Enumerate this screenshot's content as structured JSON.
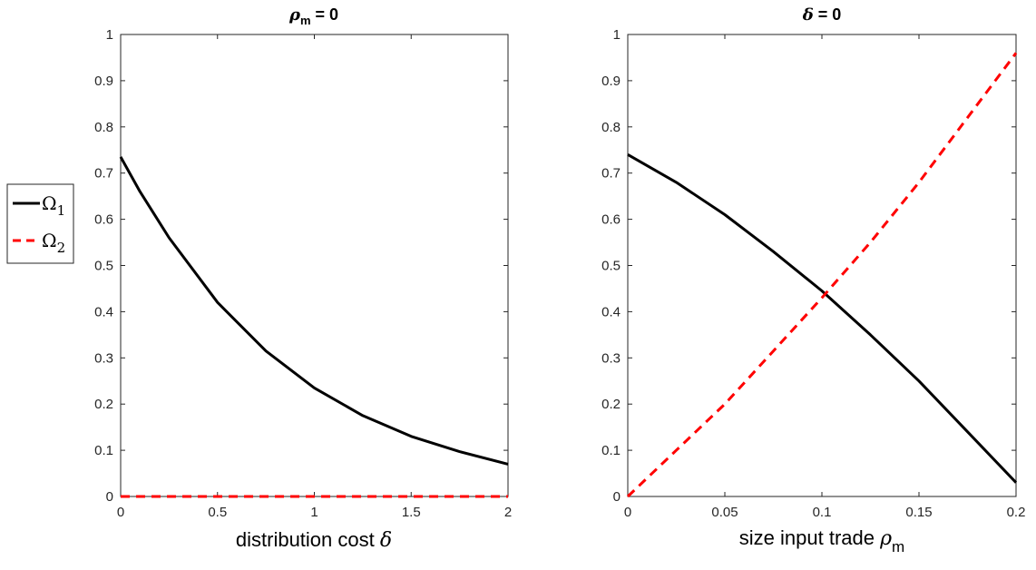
{
  "legend": {
    "entries": [
      {
        "symbol": "Ω",
        "subscript": "1",
        "color": "#000000",
        "dash": "solid"
      },
      {
        "symbol": "Ω",
        "subscript": "2",
        "color": "#ff0000",
        "dash": "dashed"
      }
    ]
  },
  "panels": [
    {
      "title": {
        "symbol": "ρ",
        "subscript": "m",
        "text": " = 0"
      },
      "xlabel": {
        "text": "distribution cost ",
        "symbol": "δ",
        "subscript": ""
      }
    },
    {
      "title": {
        "symbol": "δ",
        "subscript": "",
        "text": " = 0"
      },
      "xlabel": {
        "text": "size input trade ",
        "symbol": "ρ",
        "subscript": "m"
      }
    }
  ],
  "chart_data": [
    {
      "type": "line",
      "xlim": [
        0,
        2
      ],
      "ylim": [
        0,
        1
      ],
      "xticks": [
        "0",
        "0.5",
        "1",
        "1.5",
        "2"
      ],
      "yticks": [
        "0",
        "0.1",
        "0.2",
        "0.3",
        "0.4",
        "0.5",
        "0.6",
        "0.7",
        "0.8",
        "0.9",
        "1"
      ],
      "series": [
        {
          "name": "Ω1",
          "color": "#000000",
          "dash": "solid",
          "x": [
            0,
            0.1,
            0.25,
            0.5,
            0.75,
            1.0,
            1.25,
            1.5,
            1.75,
            2.0
          ],
          "y": [
            0.735,
            0.66,
            0.56,
            0.42,
            0.315,
            0.235,
            0.175,
            0.13,
            0.097,
            0.07
          ]
        },
        {
          "name": "Ω2",
          "color": "#ff0000",
          "dash": "dashed",
          "x": [
            0,
            2
          ],
          "y": [
            0,
            0
          ]
        }
      ]
    },
    {
      "type": "line",
      "xlim": [
        0,
        0.2
      ],
      "ylim": [
        0,
        1
      ],
      "xticks": [
        "0",
        "0.05",
        "0.1",
        "0.15",
        "0.2"
      ],
      "yticks": [
        "0",
        "0.1",
        "0.2",
        "0.3",
        "0.4",
        "0.5",
        "0.6",
        "0.7",
        "0.8",
        "0.9",
        "1"
      ],
      "series": [
        {
          "name": "Ω1",
          "color": "#000000",
          "dash": "solid",
          "x": [
            0,
            0.025,
            0.05,
            0.075,
            0.1,
            0.125,
            0.15,
            0.175,
            0.2
          ],
          "y": [
            0.74,
            0.68,
            0.61,
            0.53,
            0.445,
            0.35,
            0.25,
            0.14,
            0.03
          ]
        },
        {
          "name": "Ω2",
          "color": "#ff0000",
          "dash": "dashed",
          "x": [
            0,
            0.025,
            0.05,
            0.075,
            0.1,
            0.125,
            0.15,
            0.175,
            0.2
          ],
          "y": [
            0,
            0.1,
            0.2,
            0.315,
            0.43,
            0.55,
            0.68,
            0.82,
            0.96
          ]
        }
      ]
    }
  ]
}
